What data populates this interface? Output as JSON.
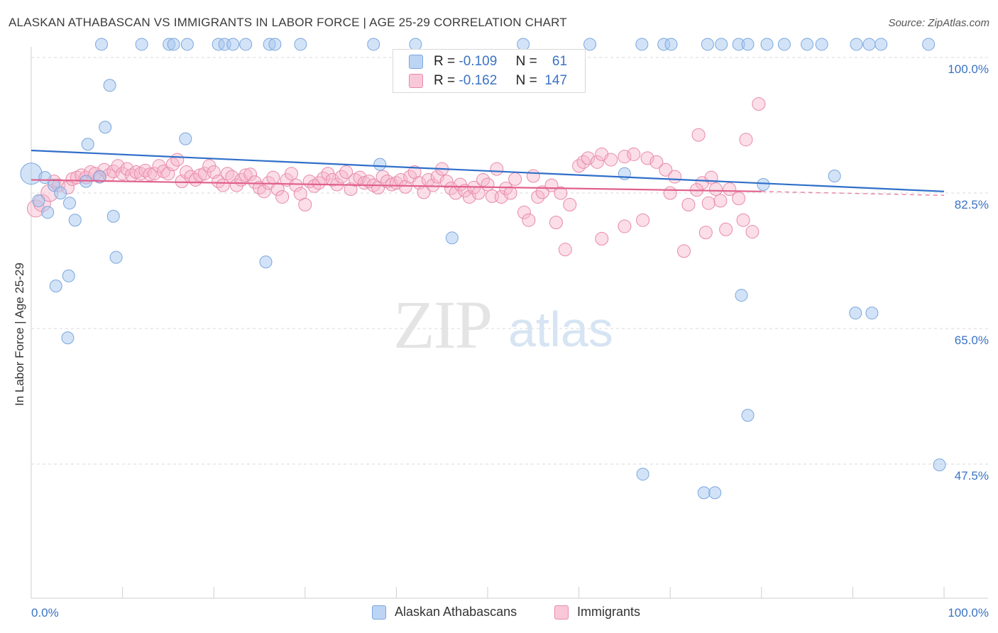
{
  "title": "ALASKAN ATHABASCAN VS IMMIGRANTS IN LABOR FORCE | AGE 25-29 CORRELATION CHART",
  "source": "Source: ZipAtlas.com",
  "watermark": {
    "zip": "ZIP",
    "atlas": "atlas"
  },
  "stats": {
    "r_label": "R =",
    "n_label": "N =",
    "rows": [
      {
        "r": "-0.109",
        "n": "61",
        "color": "#a8c8f0"
      },
      {
        "r": "-0.162",
        "n": "147",
        "color": "#f7b5cb"
      }
    ]
  },
  "legend": [
    {
      "name": "Alaskan Athabascans",
      "color": "#a8c8f0",
      "stroke": "#7aa6de"
    },
    {
      "name": "Immigrants",
      "color": "#f7b5cb",
      "stroke": "#e88aa8"
    }
  ],
  "chart_data": {
    "type": "scatter",
    "title": "ALASKAN ATHABASCAN VS IMMIGRANTS IN LABOR FORCE | AGE 25-29 CORRELATION CHART",
    "xlabel": "",
    "ylabel": "In Labor Force | Age 25-29",
    "xlim": [
      0,
      100
    ],
    "ylim": [
      32,
      102
    ],
    "x_tick_labels": [
      "0.0%",
      "100.0%"
    ],
    "y_ticks": [
      100,
      82.5,
      65,
      47.5
    ],
    "y_tick_labels": [
      "100.0%",
      "82.5%",
      "65.0%",
      "47.5%"
    ],
    "grid": true,
    "legend_position": "bottom",
    "series": [
      {
        "name": "Alaskan Athabascans",
        "color": "#7aa6de",
        "fill": "#a8c8f0",
        "trend": {
          "x": [
            0,
            100
          ],
          "y": [
            88.0,
            82.7
          ]
        },
        "points": [
          [
            0.0,
            85.0
          ],
          [
            1.5,
            84.5
          ],
          [
            0.8,
            81.5
          ],
          [
            1.8,
            80.0
          ],
          [
            2.5,
            83.5
          ],
          [
            3.2,
            82.5
          ],
          [
            4.2,
            81.2
          ],
          [
            4.8,
            79.0
          ],
          [
            6.0,
            84.0
          ],
          [
            7.5,
            84.6
          ],
          [
            8.1,
            91.0
          ],
          [
            8.6,
            96.4
          ],
          [
            6.2,
            88.8
          ],
          [
            9.0,
            79.5
          ],
          [
            9.3,
            74.2
          ],
          [
            2.7,
            70.5
          ],
          [
            4.1,
            71.8
          ],
          [
            4.0,
            63.8
          ],
          [
            7.7,
            101.7
          ],
          [
            12.1,
            101.7
          ],
          [
            15.1,
            101.7
          ],
          [
            15.6,
            101.7
          ],
          [
            17.1,
            101.7
          ],
          [
            16.9,
            89.5
          ],
          [
            20.5,
            101.7
          ],
          [
            21.2,
            101.7
          ],
          [
            22.1,
            101.7
          ],
          [
            23.5,
            101.7
          ],
          [
            26.1,
            101.7
          ],
          [
            26.7,
            101.7
          ],
          [
            29.5,
            101.7
          ],
          [
            25.7,
            73.6
          ],
          [
            38.2,
            86.2
          ],
          [
            37.5,
            101.7
          ],
          [
            42.1,
            101.7
          ],
          [
            46.1,
            76.7
          ],
          [
            53.9,
            101.7
          ],
          [
            61.2,
            101.7
          ],
          [
            65.0,
            85.0
          ],
          [
            66.9,
            101.7
          ],
          [
            69.3,
            101.7
          ],
          [
            70.1,
            101.7
          ],
          [
            74.1,
            101.7
          ],
          [
            75.6,
            101.7
          ],
          [
            77.5,
            101.7
          ],
          [
            78.5,
            101.7
          ],
          [
            80.6,
            101.7
          ],
          [
            82.5,
            101.7
          ],
          [
            85.0,
            101.7
          ],
          [
            86.6,
            101.7
          ],
          [
            90.4,
            101.7
          ],
          [
            91.8,
            101.7
          ],
          [
            93.1,
            101.7
          ],
          [
            98.3,
            101.7
          ],
          [
            80.2,
            83.6
          ],
          [
            88.0,
            84.7
          ],
          [
            77.8,
            69.3
          ],
          [
            67.0,
            46.2
          ],
          [
            73.7,
            43.8
          ],
          [
            74.9,
            43.8
          ],
          [
            90.3,
            67.0
          ],
          [
            92.1,
            67.0
          ],
          [
            99.5,
            47.4
          ],
          [
            78.5,
            53.8
          ]
        ]
      },
      {
        "name": "Immigrants",
        "color": "#e88aa8",
        "fill": "#f7b5cb",
        "trend": {
          "x": [
            0,
            80
          ],
          "y": [
            84.2,
            82.7
          ],
          "dashed_to": [
            100,
            82.2
          ]
        },
        "points": [
          [
            0.5,
            80.5
          ],
          [
            1.2,
            81.2
          ],
          [
            2.0,
            82.5
          ],
          [
            2.5,
            84.0
          ],
          [
            3.0,
            83.5
          ],
          [
            4.0,
            83.2
          ],
          [
            4.5,
            84.3
          ],
          [
            5.0,
            84.5
          ],
          [
            5.5,
            84.8
          ],
          [
            6.0,
            84.5
          ],
          [
            6.5,
            85.2
          ],
          [
            7.0,
            85.0
          ],
          [
            7.5,
            84.6
          ],
          [
            8.0,
            85.5
          ],
          [
            8.5,
            84.8
          ],
          [
            9.0,
            85.3
          ],
          [
            9.5,
            86.0
          ],
          [
            10.0,
            85.0
          ],
          [
            10.5,
            85.6
          ],
          [
            11.0,
            84.8
          ],
          [
            11.5,
            85.2
          ],
          [
            12.0,
            85.0
          ],
          [
            12.5,
            85.4
          ],
          [
            13.0,
            84.9
          ],
          [
            13.5,
            85.0
          ],
          [
            14.0,
            86.0
          ],
          [
            14.5,
            85.3
          ],
          [
            15.0,
            85.0
          ],
          [
            15.5,
            86.2
          ],
          [
            16.0,
            86.8
          ],
          [
            16.5,
            84.0
          ],
          [
            17.0,
            85.2
          ],
          [
            17.5,
            84.6
          ],
          [
            18.0,
            84.2
          ],
          [
            18.5,
            84.8
          ],
          [
            19.0,
            85.0
          ],
          [
            19.5,
            86.0
          ],
          [
            20.0,
            85.2
          ],
          [
            20.5,
            84.0
          ],
          [
            21.0,
            83.5
          ],
          [
            21.5,
            85.0
          ],
          [
            22.0,
            84.6
          ],
          [
            22.5,
            83.5
          ],
          [
            23.0,
            84.2
          ],
          [
            23.5,
            84.8
          ],
          [
            24.0,
            84.9
          ],
          [
            24.5,
            83.9
          ],
          [
            25.0,
            83.2
          ],
          [
            25.5,
            82.7
          ],
          [
            26.0,
            83.8
          ],
          [
            26.5,
            84.5
          ],
          [
            27.0,
            83.0
          ],
          [
            27.5,
            82.0
          ],
          [
            28.0,
            84.2
          ],
          [
            28.5,
            85.0
          ],
          [
            29.0,
            83.5
          ],
          [
            29.5,
            82.4
          ],
          [
            30.0,
            81.0
          ],
          [
            30.5,
            84.0
          ],
          [
            31.0,
            83.4
          ],
          [
            31.5,
            83.8
          ],
          [
            32.0,
            84.4
          ],
          [
            32.5,
            85.0
          ],
          [
            33.0,
            84.2
          ],
          [
            33.5,
            83.6
          ],
          [
            34.0,
            84.6
          ],
          [
            34.5,
            85.2
          ],
          [
            35.0,
            83.0
          ],
          [
            35.5,
            84.2
          ],
          [
            36.0,
            84.5
          ],
          [
            36.5,
            83.8
          ],
          [
            37.0,
            84.0
          ],
          [
            37.5,
            83.5
          ],
          [
            38.0,
            83.2
          ],
          [
            38.5,
            84.6
          ],
          [
            39.0,
            84.0
          ],
          [
            39.5,
            83.6
          ],
          [
            40.0,
            83.8
          ],
          [
            40.5,
            84.2
          ],
          [
            41.0,
            83.3
          ],
          [
            41.5,
            84.6
          ],
          [
            42.0,
            85.2
          ],
          [
            42.5,
            83.8
          ],
          [
            43.0,
            82.6
          ],
          [
            43.5,
            84.2
          ],
          [
            44.0,
            83.5
          ],
          [
            44.5,
            84.6
          ],
          [
            45.0,
            85.6
          ],
          [
            45.5,
            84.0
          ],
          [
            46.0,
            83.1
          ],
          [
            46.5,
            82.5
          ],
          [
            47.0,
            83.6
          ],
          [
            47.5,
            82.8
          ],
          [
            48.0,
            82.0
          ],
          [
            48.5,
            83.2
          ],
          [
            49.0,
            82.5
          ],
          [
            49.5,
            84.2
          ],
          [
            50.0,
            83.6
          ],
          [
            50.5,
            82.1
          ],
          [
            51.0,
            85.6
          ],
          [
            51.5,
            82.0
          ],
          [
            52.0,
            83.1
          ],
          [
            52.5,
            82.5
          ],
          [
            53.0,
            84.3
          ],
          [
            54.0,
            80.0
          ],
          [
            54.5,
            79.0
          ],
          [
            55.0,
            84.7
          ],
          [
            55.5,
            82.0
          ],
          [
            56.0,
            82.6
          ],
          [
            57.0,
            83.5
          ],
          [
            57.5,
            78.7
          ],
          [
            58.0,
            82.5
          ],
          [
            59.0,
            81.0
          ],
          [
            60.0,
            86.0
          ],
          [
            60.5,
            86.5
          ],
          [
            61.0,
            87.0
          ],
          [
            62.0,
            86.5
          ],
          [
            62.5,
            87.5
          ],
          [
            63.5,
            86.8
          ],
          [
            65.0,
            87.2
          ],
          [
            66.0,
            87.5
          ],
          [
            67.5,
            87.0
          ],
          [
            68.5,
            86.5
          ],
          [
            69.5,
            85.5
          ],
          [
            70.0,
            82.5
          ],
          [
            70.5,
            84.6
          ],
          [
            72.0,
            81.0
          ],
          [
            73.5,
            83.8
          ],
          [
            74.5,
            84.5
          ],
          [
            75.0,
            83.0
          ],
          [
            75.5,
            81.5
          ],
          [
            76.5,
            83.0
          ],
          [
            77.5,
            81.8
          ],
          [
            78.0,
            79.0
          ],
          [
            79.0,
            77.5
          ],
          [
            72.9,
            82.9
          ],
          [
            58.5,
            75.2
          ],
          [
            62.5,
            76.6
          ],
          [
            67.0,
            79.0
          ],
          [
            65.0,
            78.2
          ],
          [
            74.2,
            81.2
          ],
          [
            73.1,
            90.0
          ],
          [
            78.3,
            89.4
          ],
          [
            79.7,
            94.0
          ],
          [
            71.5,
            75.0
          ],
          [
            73.9,
            77.4
          ],
          [
            76.1,
            77.8
          ]
        ]
      }
    ]
  }
}
